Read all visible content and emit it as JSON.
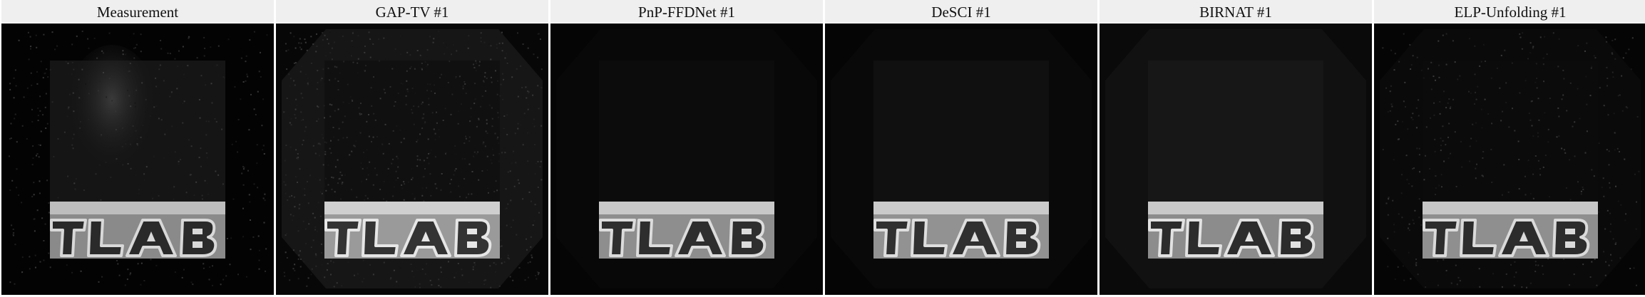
{
  "panels": [
    {
      "title": "Measurement",
      "variant": "measurement"
    },
    {
      "title": "GAP-TV #1",
      "variant": "gaptv"
    },
    {
      "title": "PnP-FFDNet #1",
      "variant": "pnp"
    },
    {
      "title": "DeSCI #1",
      "variant": "desci"
    },
    {
      "title": "BIRNAT #1",
      "variant": "birnat"
    },
    {
      "title": "ELP-Unfolding #1",
      "variant": "elp"
    }
  ]
}
